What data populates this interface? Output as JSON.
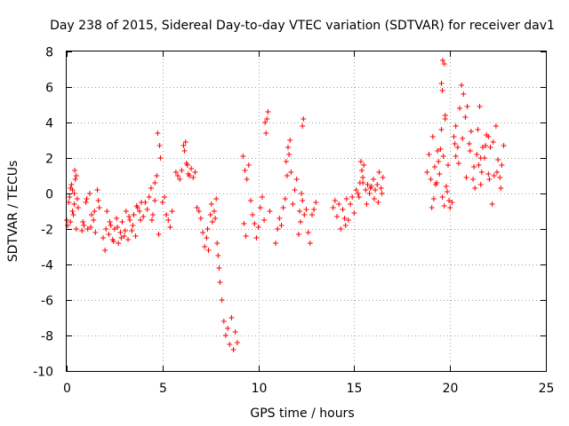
{
  "chart_data": {
    "type": "scatter",
    "title": "Day 238 of 2015, Sidereal Day-to-day VTEC variation (SDTVAR) for receiver dav1",
    "xlabel": "GPS time / hours",
    "ylabel": "SDTVAR / TECUs",
    "xlim": [
      0,
      25
    ],
    "ylim": [
      -10,
      8
    ],
    "xticks": [
      0,
      5,
      10,
      15,
      20,
      25
    ],
    "yticks": [
      -10,
      -8,
      -6,
      -4,
      -2,
      0,
      2,
      4,
      6,
      8
    ],
    "xtick_labels": [
      "0",
      "5",
      "10",
      "15",
      "20",
      "25"
    ],
    "ytick_labels": [
      "-10",
      "-8",
      "-6",
      "-4",
      "-2",
      "0",
      "2",
      "4",
      "6",
      "8"
    ],
    "grid": true,
    "marker": "+",
    "color": "#ff0000",
    "series": [
      {
        "name": "dav1",
        "x": [
          0.0,
          0.1,
          0.2,
          0.3,
          0.4,
          0.5,
          0.6,
          0.05,
          0.15,
          0.25,
          0.35,
          0.45,
          0.55,
          0.2,
          0.3,
          0.4,
          0.42,
          0.5,
          0.8,
          0.9,
          1.0,
          1.1,
          1.2,
          1.3,
          1.4,
          1.5,
          1.6,
          1.7,
          0.85,
          1.05,
          1.25,
          1.45,
          1.65,
          1.9,
          2.0,
          2.1,
          2.2,
          2.3,
          2.4,
          2.5,
          2.6,
          2.7,
          2.8,
          2.9,
          3.0,
          3.1,
          3.2,
          3.3,
          3.4,
          3.5,
          3.6,
          3.7,
          3.8,
          3.9,
          4.0,
          2.05,
          2.25,
          2.45,
          2.65,
          2.85,
          3.05,
          3.25,
          3.45,
          3.65,
          3.85,
          4.1,
          4.2,
          4.3,
          4.4,
          4.5,
          4.6,
          4.7,
          4.8,
          4.9,
          4.75,
          4.85,
          4.45,
          4.6,
          5.0,
          5.1,
          5.2,
          5.3,
          5.4,
          5.5,
          5.7,
          5.8,
          5.9,
          6.0,
          6.1,
          6.2,
          6.3,
          6.4,
          6.5,
          6.6,
          6.7,
          6.15,
          6.25,
          6.35,
          6.8,
          6.9,
          7.0,
          7.1,
          7.2,
          7.3,
          7.4,
          7.5,
          7.6,
          7.7,
          7.8,
          7.85,
          7.9,
          7.95,
          8.0,
          8.1,
          8.2,
          8.3,
          8.4,
          8.5,
          8.6,
          8.7,
          8.8,
          8.9,
          7.35,
          7.55,
          7.75,
          9.2,
          9.3,
          9.4,
          9.5,
          9.25,
          9.35,
          9.6,
          9.7,
          9.8,
          9.9,
          10.0,
          10.1,
          10.2,
          10.3,
          10.4,
          10.5,
          10.35,
          10.45,
          10.6,
          10.9,
          11.0,
          11.1,
          11.2,
          11.3,
          11.4,
          11.5,
          11.6,
          11.7,
          11.8,
          11.9,
          12.0,
          12.1,
          12.2,
          12.3,
          12.4,
          12.5,
          12.6,
          12.7,
          12.8,
          12.9,
          13.0,
          11.45,
          11.55,
          11.65,
          12.15,
          12.25,
          12.35,
          12.3,
          13.9,
          14.0,
          14.1,
          14.2,
          14.3,
          14.4,
          14.5,
          14.6,
          14.7,
          14.8,
          14.9,
          15.0,
          15.1,
          15.2,
          15.3,
          15.4,
          15.5,
          15.6,
          15.7,
          15.8,
          15.9,
          16.0,
          16.1,
          16.2,
          16.3,
          16.4,
          16.5,
          14.55,
          15.25,
          15.45,
          15.65,
          15.85,
          16.05,
          16.25,
          16.45,
          15.35,
          15.45,
          18.8,
          18.9,
          19.0,
          19.1,
          19.2,
          19.3,
          19.4,
          19.5,
          19.6,
          19.7,
          19.8,
          19.9,
          20.0,
          20.1,
          20.2,
          20.3,
          20.4,
          20.5,
          20.6,
          20.7,
          20.8,
          20.9,
          21.0,
          21.1,
          21.2,
          21.3,
          21.4,
          21.5,
          21.6,
          21.7,
          21.8,
          21.9,
          22.0,
          22.1,
          22.2,
          22.3,
          22.4,
          22.5,
          22.6,
          22.7,
          22.8,
          19.05,
          19.15,
          19.25,
          19.35,
          19.45,
          19.55,
          19.65,
          19.75,
          19.85,
          19.95,
          20.25,
          20.45,
          20.65,
          20.85,
          21.05,
          21.25,
          21.45,
          21.65,
          21.85,
          22.05,
          22.25,
          22.45,
          22.65,
          19.62,
          19.7,
          19.55,
          19.6,
          19.75,
          20.3,
          21.55,
          21.6,
          22.0
        ],
        "y": [
          -1.5,
          -0.5,
          0.3,
          -1.0,
          0.0,
          1.0,
          -0.8,
          -1.8,
          -0.2,
          0.5,
          -1.2,
          0.8,
          -0.3,
          -1.6,
          0.2,
          -0.6,
          1.3,
          -2.0,
          -2.1,
          -1.8,
          -0.5,
          -2.0,
          0.0,
          -1.2,
          -1.5,
          -2.2,
          0.2,
          -0.8,
          -1.6,
          -0.3,
          -1.9,
          -1.0,
          -0.4,
          -2.5,
          -3.2,
          -1.0,
          -2.3,
          -1.8,
          -2.6,
          -2.0,
          -1.4,
          -2.8,
          -2.2,
          -1.6,
          -2.4,
          -1.0,
          -2.6,
          -1.5,
          -2.1,
          -1.2,
          -2.4,
          -0.8,
          -1.0,
          -0.5,
          -1.3,
          -2.0,
          -1.6,
          -2.7,
          -1.9,
          -2.5,
          -2.1,
          -1.3,
          -1.8,
          -0.7,
          -1.5,
          -0.5,
          -0.9,
          -0.2,
          0.3,
          -1.2,
          -0.4,
          1.0,
          -2.3,
          2.0,
          3.4,
          2.7,
          -1.5,
          0.6,
          -0.5,
          -0.2,
          -1.2,
          -1.5,
          -1.9,
          -1.0,
          1.2,
          1.0,
          0.8,
          1.3,
          2.7,
          2.9,
          1.6,
          1.0,
          1.4,
          0.9,
          1.2,
          2.4,
          1.7,
          1.1,
          -0.8,
          -1.0,
          -1.4,
          -2.2,
          -3.0,
          -2.5,
          -3.2,
          -1.2,
          -1.6,
          -1.0,
          -0.3,
          -2.8,
          -3.5,
          -4.2,
          -5.0,
          -6.0,
          -7.2,
          -8.0,
          -7.6,
          -8.5,
          -7.0,
          -8.8,
          -7.8,
          -8.4,
          -2.0,
          -0.6,
          -1.4,
          2.1,
          1.3,
          0.8,
          1.6,
          -1.7,
          -2.4,
          -0.4,
          -1.2,
          -1.7,
          -2.5,
          -1.9,
          -0.8,
          -0.2,
          -1.5,
          3.4,
          4.6,
          4.0,
          4.2,
          -1.0,
          -2.8,
          -2.0,
          -1.4,
          -1.8,
          -0.8,
          -0.3,
          1.0,
          2.2,
          1.2,
          -0.6,
          0.2,
          0.8,
          -2.3,
          -1.6,
          -0.4,
          -1.2,
          -0.9,
          -2.2,
          -2.8,
          -1.2,
          -0.9,
          -0.5,
          1.8,
          2.6,
          3.0,
          -1.0,
          0.0,
          4.2,
          3.8,
          -0.8,
          -0.4,
          -1.3,
          -0.6,
          -2.0,
          -0.9,
          -1.4,
          -0.3,
          -1.5,
          -0.6,
          -0.2,
          -1.1,
          0.2,
          0.0,
          0.6,
          1.3,
          1.6,
          0.2,
          0.5,
          0.0,
          0.4,
          0.8,
          0.2,
          0.5,
          1.2,
          0.3,
          0.9,
          -1.8,
          -0.2,
          0.9,
          -0.6,
          0.3,
          -0.3,
          -0.5,
          0.0,
          1.8,
          0.6,
          1.2,
          2.2,
          0.8,
          3.2,
          1.5,
          0.6,
          1.8,
          2.5,
          -0.2,
          -0.7,
          0.4,
          1.6,
          -0.8,
          -0.5,
          3.2,
          3.8,
          2.6,
          4.8,
          6.1,
          5.6,
          4.3,
          4.9,
          2.8,
          3.5,
          0.8,
          0.3,
          2.2,
          1.6,
          0.5,
          2.6,
          2.0,
          3.3,
          1.1,
          2.6,
          -0.6,
          1.0,
          3.8,
          1.9,
          0.9,
          1.6,
          2.7,
          -0.8,
          -0.3,
          0.5,
          2.4,
          1.1,
          3.6,
          2.1,
          4.2,
          0.1,
          -0.4,
          2.8,
          1.7,
          3.1,
          0.9,
          2.4,
          1.5,
          3.6,
          1.2,
          2.7,
          0.8,
          2.9,
          1.2,
          0.3,
          7.5,
          7.3,
          6.2,
          5.8,
          4.4,
          2.1,
          4.9,
          2.0,
          3.2
        ]
      }
    ]
  }
}
